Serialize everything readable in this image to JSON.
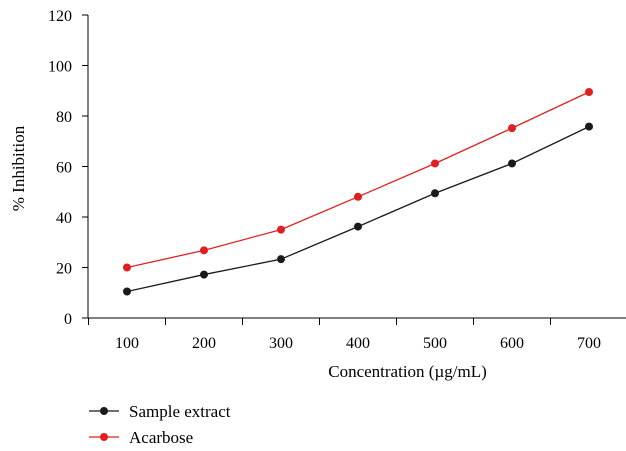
{
  "chart_data": {
    "type": "line",
    "xlabel": "Concentration (µg/mL)",
    "ylabel": "% Inhibition",
    "x": [
      100,
      200,
      300,
      400,
      500,
      600,
      700
    ],
    "x_ticks": [
      "100",
      "200",
      "300",
      "400",
      "500",
      "600",
      "700"
    ],
    "ylim": [
      0,
      120
    ],
    "y_ticks": [
      "0",
      "20",
      "40",
      "60",
      "80",
      "100",
      "120"
    ],
    "grid": false,
    "legend_position": "bottom-left",
    "series": [
      {
        "name": "Sample extract",
        "color": "#1a1a1a",
        "values": [
          10.5,
          17.2,
          23.3,
          36.2,
          49.4,
          61.2,
          75.8
        ]
      },
      {
        "name": "Acarbose",
        "color": "#e02020",
        "values": [
          20.0,
          26.8,
          35.0,
          48.0,
          61.2,
          75.2,
          89.5
        ]
      }
    ]
  }
}
